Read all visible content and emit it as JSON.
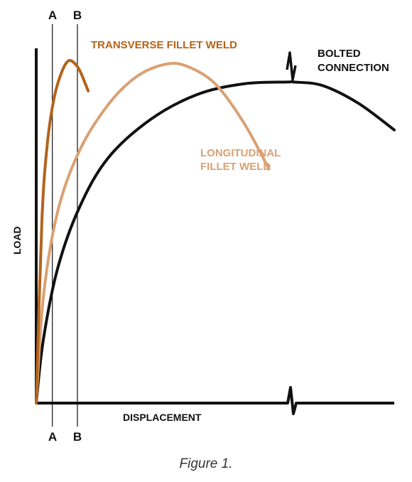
{
  "chart_data": {
    "type": "line",
    "title": "",
    "xlabel": "DISPLACEMENT",
    "ylabel": "LOAD",
    "grid": false,
    "axis_values": "none",
    "x_axis_break": true,
    "series": [
      {
        "name": "TRANSVERSE FILLET WELD",
        "color": "#b3641c",
        "points": [
          [
            0,
            0
          ],
          [
            0.016,
            0.52
          ],
          [
            0.032,
            0.74
          ],
          [
            0.05,
            0.86
          ],
          [
            0.07,
            0.93
          ],
          [
            0.09,
            0.965
          ],
          [
            0.11,
            0.955
          ],
          [
            0.125,
            0.93
          ],
          [
            0.145,
            0.88
          ]
        ]
      },
      {
        "name": "LONGITUDINAL FILLET WELD",
        "color": "#d9a173",
        "points": [
          [
            0,
            0
          ],
          [
            0.02,
            0.3
          ],
          [
            0.06,
            0.54
          ],
          [
            0.12,
            0.71
          ],
          [
            0.2,
            0.84
          ],
          [
            0.28,
            0.92
          ],
          [
            0.36,
            0.955
          ],
          [
            0.42,
            0.95
          ],
          [
            0.5,
            0.9
          ],
          [
            0.58,
            0.79
          ],
          [
            0.65,
            0.66
          ]
        ]
      },
      {
        "name": "BOLTED CONNECTION",
        "color": "#111111",
        "points": [
          [
            0,
            0
          ],
          [
            0.02,
            0.18
          ],
          [
            0.06,
            0.38
          ],
          [
            0.12,
            0.55
          ],
          [
            0.2,
            0.69
          ],
          [
            0.32,
            0.8
          ],
          [
            0.45,
            0.87
          ],
          [
            0.58,
            0.9
          ],
          [
            0.7,
            0.905
          ],
          [
            0.72,
            0.905
          ],
          [
            0.8,
            0.895
          ],
          [
            0.9,
            0.845
          ],
          [
            1.0,
            0.77
          ]
        ]
      }
    ],
    "reference_lines": [
      {
        "label": "A",
        "x": 0.045
      },
      {
        "label": "B",
        "x": 0.115
      }
    ],
    "annotations": {
      "transverse": "TRANSVERSE FILLET WELD",
      "longitudinal_line1": "LONGITUDINAL",
      "longitudinal_line2": "FILLET WELD",
      "bolted_line1": "BOLTED",
      "bolted_line2": "CONNECTION"
    },
    "caption": "Figure 1."
  }
}
